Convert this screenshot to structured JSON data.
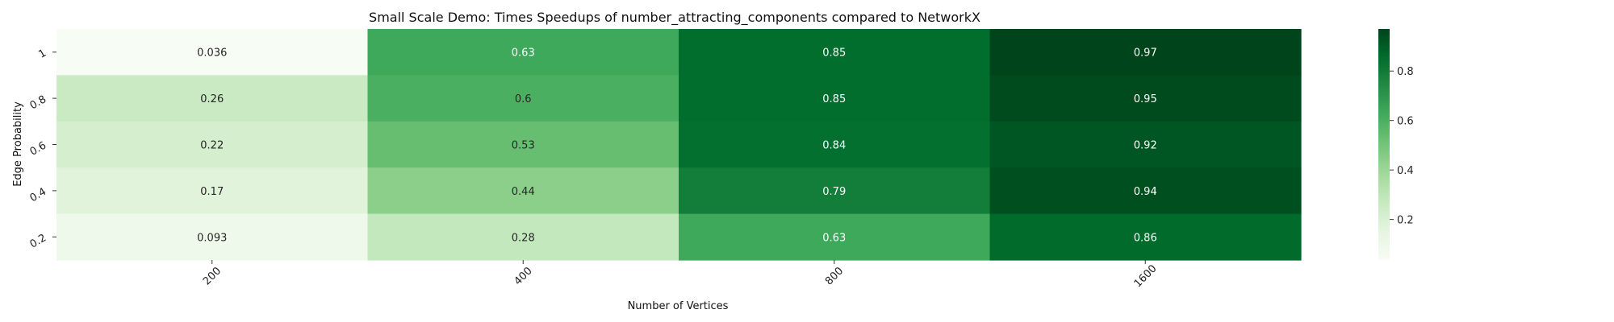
{
  "chart_data": {
    "type": "heatmap",
    "title": "Small Scale Demo: Times Speedups of number_attracting_components compared to NetworkX",
    "xlabel": "Number of Vertices",
    "ylabel": "Edge Probability",
    "x_categories": [
      "200",
      "400",
      "800",
      "1600"
    ],
    "y_categories": [
      "1",
      "0.8",
      "0.6",
      "0.4",
      "0.2"
    ],
    "values": [
      [
        0.036,
        0.63,
        0.85,
        0.97
      ],
      [
        0.26,
        0.6,
        0.85,
        0.95
      ],
      [
        0.22,
        0.53,
        0.84,
        0.92
      ],
      [
        0.17,
        0.44,
        0.79,
        0.94
      ],
      [
        0.093,
        0.28,
        0.63,
        0.86
      ]
    ],
    "value_labels": [
      [
        "0.036",
        "0.63",
        "0.85",
        "0.97"
      ],
      [
        "0.26",
        "0.6",
        "0.85",
        "0.95"
      ],
      [
        "0.22",
        "0.53",
        "0.84",
        "0.92"
      ],
      [
        "0.17",
        "0.44",
        "0.79",
        "0.94"
      ],
      [
        "0.093",
        "0.28",
        "0.63",
        "0.86"
      ]
    ],
    "colormap": "Greens",
    "colorbar": {
      "range": [
        0.036,
        0.97
      ],
      "ticks": [
        0.2,
        0.4,
        0.6,
        0.8
      ],
      "tick_labels": [
        "0.2",
        "0.4",
        "0.6",
        "0.8"
      ]
    },
    "grid": false,
    "legend": "none"
  }
}
